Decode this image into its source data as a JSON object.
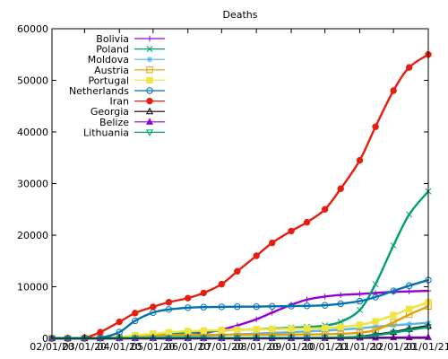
{
  "chart_data": {
    "type": "line",
    "title": "Deaths",
    "xlabel": "",
    "ylabel": "",
    "xlim": [
      "2020-02-01",
      "2021-01-01"
    ],
    "ylim": [
      0,
      60000
    ],
    "grid": false,
    "legend_position": "top-left",
    "x_tick_labels": [
      "02/01/20",
      "03/01/20",
      "04/01/20",
      "05/01/20",
      "06/01/20",
      "07/01/20",
      "08/01/20",
      "09/01/20",
      "10/01/20",
      "11/01/20",
      "12/01/20",
      "01/01/21"
    ],
    "y_ticks": [
      0,
      10000,
      20000,
      30000,
      40000,
      50000,
      60000
    ],
    "x": [
      "2020-02-01",
      "2020-02-15",
      "2020-03-01",
      "2020-03-15",
      "2020-04-01",
      "2020-04-15",
      "2020-05-01",
      "2020-05-15",
      "2020-06-01",
      "2020-06-15",
      "2020-07-01",
      "2020-07-15",
      "2020-08-01",
      "2020-08-15",
      "2020-09-01",
      "2020-09-15",
      "2020-10-01",
      "2020-10-15",
      "2020-11-01",
      "2020-11-15",
      "2020-12-01",
      "2020-12-15",
      "2021-01-01"
    ],
    "series": [
      {
        "name": "Bolivia",
        "color": "#9400d3",
        "marker": "plus",
        "values": [
          0,
          0,
          0,
          0,
          10,
          50,
          150,
          300,
          600,
          1000,
          1700,
          2500,
          3700,
          5000,
          6500,
          7500,
          8100,
          8400,
          8600,
          8800,
          9000,
          9100,
          9200
        ]
      },
      {
        "name": "Poland",
        "color": "#009e73",
        "marker": "x",
        "values": [
          0,
          0,
          0,
          10,
          100,
          300,
          600,
          900,
          1100,
          1300,
          1500,
          1700,
          1750,
          1900,
          2050,
          2200,
          2500,
          3200,
          5500,
          10500,
          18000,
          24000,
          28500
        ]
      },
      {
        "name": "Moldova",
        "color": "#56b4e9",
        "marker": "star",
        "values": [
          0,
          0,
          0,
          0,
          30,
          90,
          180,
          270,
          380,
          500,
          650,
          780,
          900,
          1050,
          1200,
          1350,
          1500,
          1700,
          1950,
          2250,
          2500,
          2750,
          3000
        ]
      },
      {
        "name": "Austria",
        "color": "#e69f00",
        "marker": "square",
        "values": [
          0,
          0,
          0,
          50,
          200,
          450,
          580,
          620,
          660,
          680,
          700,
          710,
          720,
          730,
          740,
          760,
          800,
          880,
          1100,
          1600,
          3100,
          4600,
          6200
        ]
      },
      {
        "name": "Portugal",
        "color": "#f0e442",
        "marker": "filled-square",
        "values": [
          0,
          0,
          0,
          20,
          200,
          600,
          900,
          1150,
          1400,
          1500,
          1600,
          1700,
          1750,
          1800,
          1850,
          1900,
          2000,
          2200,
          2600,
          3300,
          4500,
          5700,
          7000
        ]
      },
      {
        "name": "Netherlands",
        "color": "#0072b2",
        "marker": "circle",
        "values": [
          0,
          0,
          0,
          100,
          1200,
          3400,
          5000,
          5600,
          5950,
          6050,
          6100,
          6150,
          6150,
          6200,
          6250,
          6300,
          6400,
          6700,
          7200,
          8000,
          9200,
          10200,
          11300
        ]
      },
      {
        "name": "Iran",
        "color": "#e51e10",
        "marker": "filled-circle",
        "values": [
          0,
          0,
          100,
          1200,
          3200,
          4900,
          6100,
          7000,
          7800,
          8800,
          10500,
          13000,
          16000,
          18500,
          20800,
          22500,
          25000,
          29000,
          34500,
          41000,
          48000,
          52500,
          55000
        ]
      },
      {
        "name": "Georgia",
        "color": "#000000",
        "marker": "triangle",
        "values": [
          0,
          0,
          0,
          0,
          5,
          10,
          15,
          15,
          15,
          15,
          15,
          15,
          15,
          18,
          20,
          30,
          60,
          140,
          320,
          700,
          1200,
          1800,
          2400
        ]
      },
      {
        "name": "Belize",
        "color": "#9400d3",
        "marker": "filled-triangle",
        "values": [
          0,
          0,
          0,
          0,
          2,
          2,
          2,
          2,
          2,
          2,
          2,
          2,
          5,
          10,
          20,
          30,
          50,
          70,
          100,
          130,
          160,
          180,
          200
        ]
      },
      {
        "name": "Lithuania",
        "color": "#009e73",
        "marker": "down-triangle",
        "values": [
          0,
          0,
          0,
          5,
          30,
          50,
          60,
          70,
          75,
          78,
          80,
          80,
          82,
          85,
          90,
          100,
          120,
          160,
          280,
          600,
          1100,
          1600,
          2200
        ]
      }
    ]
  }
}
